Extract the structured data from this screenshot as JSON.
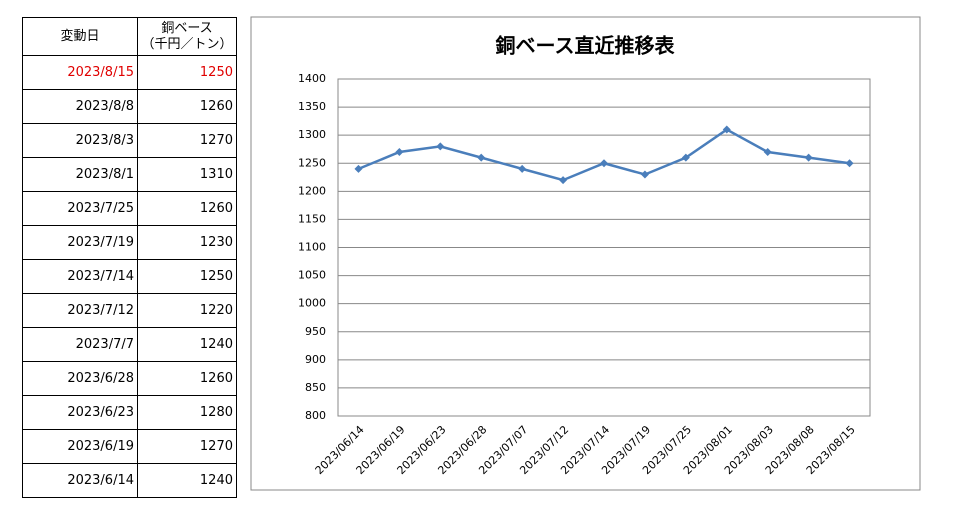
{
  "table": {
    "header": [
      "変動日",
      [
        "銅ベース",
        "（千円／トン）"
      ]
    ],
    "rows": [
      [
        "2023/8/15",
        "1250"
      ],
      [
        "2023/8/8",
        "1260"
      ],
      [
        "2023/8/3",
        "1270"
      ],
      [
        "2023/8/1",
        "1310"
      ],
      [
        "2023/7/25",
        "1260"
      ],
      [
        "2023/7/19",
        "1230"
      ],
      [
        "2023/7/14",
        "1250"
      ],
      [
        "2023/7/12",
        "1220"
      ],
      [
        "2023/7/7",
        "1240"
      ],
      [
        "2023/6/28",
        "1260"
      ],
      [
        "2023/6/23",
        "1280"
      ],
      [
        "2023/6/19",
        "1270"
      ],
      [
        "2023/6/14",
        "1240"
      ]
    ]
  },
  "chart_data": {
    "type": "line",
    "title": "銅ベース直近推移表",
    "categories": [
      "2023/06/14",
      "2023/06/19",
      "2023/06/23",
      "2023/06/28",
      "2023/07/07",
      "2023/07/12",
      "2023/07/14",
      "2023/07/19",
      "2023/07/25",
      "2023/08/01",
      "2023/08/03",
      "2023/08/08",
      "2023/08/15"
    ],
    "values": [
      1240,
      1270,
      1280,
      1260,
      1240,
      1220,
      1250,
      1230,
      1260,
      1310,
      1270,
      1260,
      1250
    ],
    "color": "#4a7ebb",
    "ylim": [
      800,
      1400
    ],
    "yticks": [
      800,
      850,
      900,
      950,
      1000,
      1050,
      1100,
      1150,
      1200,
      1250,
      1300,
      1350,
      1400
    ],
    "grid": true
  }
}
